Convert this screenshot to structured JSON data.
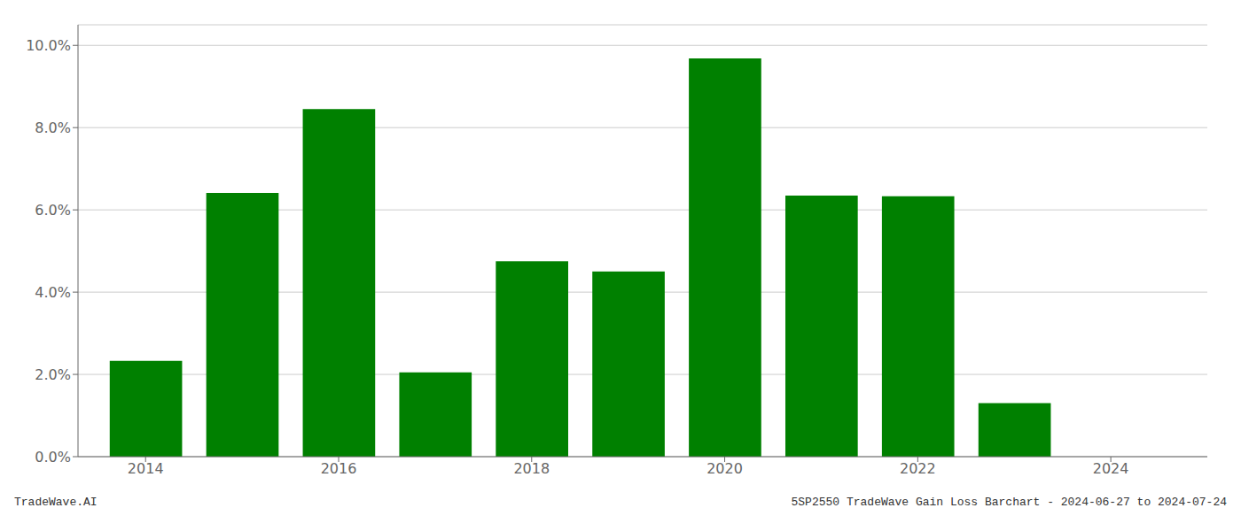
{
  "chart_data": {
    "type": "bar",
    "x": [
      2014,
      2015,
      2016,
      2017,
      2018,
      2019,
      2020,
      2021,
      2022,
      2023,
      2024
    ],
    "values": [
      0.0233,
      0.0641,
      0.0845,
      0.0205,
      0.0475,
      0.045,
      0.0968,
      0.0635,
      0.0633,
      0.013,
      0.0
    ],
    "color": "#008000",
    "xlim": [
      2013.3,
      2025.0
    ],
    "xticks": [
      2014,
      2016,
      2018,
      2020,
      2022,
      2024
    ],
    "ylim": [
      0.0,
      0.105
    ],
    "yticks": [
      {
        "value": 0.0,
        "label": "0.0%"
      },
      {
        "value": 0.02,
        "label": "2.0%"
      },
      {
        "value": 0.04,
        "label": "4.0%"
      },
      {
        "value": 0.06,
        "label": "6.0%"
      },
      {
        "value": 0.08,
        "label": "8.0%"
      },
      {
        "value": 0.1,
        "label": "10.0%"
      }
    ],
    "grid": true,
    "annotations": [
      "TradeWave.AI",
      "5SP2550 TradeWave Gain Loss Barchart - 2024-06-27 to 2024-07-24"
    ]
  }
}
